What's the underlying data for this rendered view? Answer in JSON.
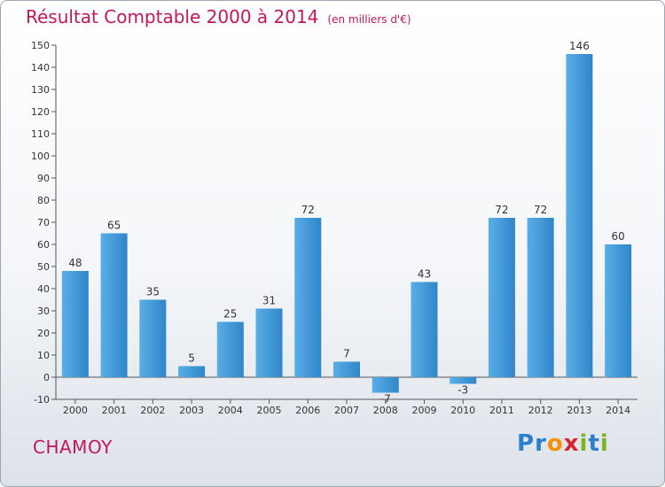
{
  "title": "Résultat Comptable 2000 à 2014",
  "unit": "(en milliers d'€)",
  "commune": "CHAMOY",
  "logo": {
    "text": "Proxiti",
    "letters": [
      {
        "ch": "P",
        "color": "#2e7fc9"
      },
      {
        "ch": "r",
        "color": "#2e7fc9"
      },
      {
        "ch": "o",
        "color": "#f39200"
      },
      {
        "ch": "x",
        "color": "#d6262f"
      },
      {
        "ch": "i",
        "color": "#7ab526"
      },
      {
        "ch": "t",
        "color": "#2e7fc9"
      },
      {
        "ch": "i",
        "color": "#7ab526"
      }
    ]
  },
  "chart_data": {
    "type": "bar",
    "categories": [
      "2000",
      "2001",
      "2002",
      "2003",
      "2004",
      "2005",
      "2006",
      "2007",
      "2008",
      "2009",
      "2010",
      "2011",
      "2012",
      "2013",
      "2014"
    ],
    "values": [
      48,
      65,
      35,
      5,
      25,
      31,
      72,
      7,
      -7,
      43,
      -3,
      72,
      72,
      146,
      60
    ],
    "ylim": [
      -10,
      150
    ],
    "yticks": [
      -10,
      0,
      10,
      20,
      30,
      40,
      50,
      60,
      70,
      80,
      90,
      100,
      110,
      120,
      130,
      140,
      150
    ],
    "grid": false,
    "bar_color": "#2f86c9",
    "bar_color_light": "#5aaee6"
  }
}
